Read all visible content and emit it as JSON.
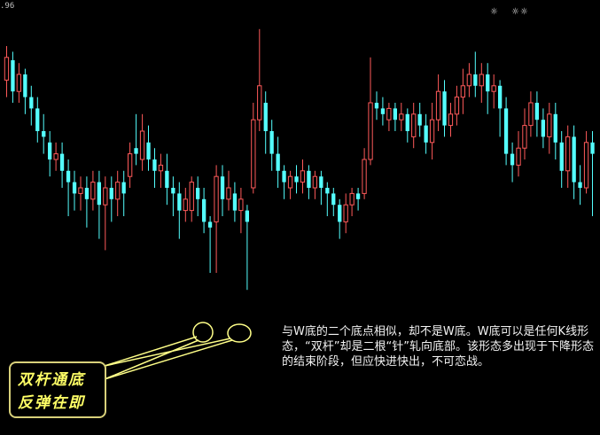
{
  "price_label": ".96",
  "corner_icons": [
    "sun-icon",
    "double-sun-icon"
  ],
  "corner_glyphs": [
    "☼",
    "☼☼"
  ],
  "callout": {
    "line1": "双杆通底",
    "line2": "反弹在即"
  },
  "annotation_text": "与W底的二个底点相似，却不是W底。W底可以是任何K线形态，“双杆”却是二根“针”轧向底部。该形态多出现于下降形态的结束阶段，但应快进快出，不可恋战。",
  "colors": {
    "up": "#ff5a5a",
    "down": "#54ffff",
    "ellipse": "#ffff88",
    "callout_border": "#d8d07a",
    "callout_text": "#ffff66"
  },
  "chart_data": {
    "type": "candlestick",
    "ylim": [
      0,
      100
    ],
    "candles": [
      {
        "o": 78,
        "c": 86,
        "h": 90,
        "l": 72
      },
      {
        "o": 85,
        "c": 74,
        "h": 88,
        "l": 70
      },
      {
        "o": 74,
        "c": 80,
        "h": 84,
        "l": 70
      },
      {
        "o": 80,
        "c": 72,
        "h": 82,
        "l": 66
      },
      {
        "o": 72,
        "c": 68,
        "h": 76,
        "l": 62
      },
      {
        "o": 68,
        "c": 60,
        "h": 72,
        "l": 56
      },
      {
        "o": 60,
        "c": 58,
        "h": 66,
        "l": 52
      },
      {
        "o": 56,
        "c": 50,
        "h": 60,
        "l": 44
      },
      {
        "o": 50,
        "c": 52,
        "h": 56,
        "l": 46
      },
      {
        "o": 52,
        "c": 46,
        "h": 56,
        "l": 40
      },
      {
        "o": 46,
        "c": 42,
        "h": 50,
        "l": 30
      },
      {
        "o": 42,
        "c": 38,
        "h": 46,
        "l": 32
      },
      {
        "o": 38,
        "c": 40,
        "h": 44,
        "l": 32
      },
      {
        "o": 40,
        "c": 36,
        "h": 44,
        "l": 26
      },
      {
        "o": 36,
        "c": 42,
        "h": 46,
        "l": 32
      },
      {
        "o": 42,
        "c": 34,
        "h": 46,
        "l": 22
      },
      {
        "o": 34,
        "c": 40,
        "h": 44,
        "l": 18
      },
      {
        "o": 40,
        "c": 36,
        "h": 44,
        "l": 28
      },
      {
        "o": 36,
        "c": 42,
        "h": 46,
        "l": 30
      },
      {
        "o": 42,
        "c": 38,
        "h": 46,
        "l": 30
      },
      {
        "o": 44,
        "c": 52,
        "h": 56,
        "l": 40
      },
      {
        "o": 54,
        "c": 52,
        "h": 66,
        "l": 48
      },
      {
        "o": 50,
        "c": 60,
        "h": 66,
        "l": 46
      },
      {
        "o": 56,
        "c": 50,
        "h": 62,
        "l": 46
      },
      {
        "o": 50,
        "c": 46,
        "h": 54,
        "l": 40
      },
      {
        "o": 46,
        "c": 48,
        "h": 52,
        "l": 40
      },
      {
        "o": 46,
        "c": 40,
        "h": 52,
        "l": 34
      },
      {
        "o": 40,
        "c": 38,
        "h": 44,
        "l": 30
      },
      {
        "o": 38,
        "c": 32,
        "h": 42,
        "l": 22
      },
      {
        "o": 32,
        "c": 36,
        "h": 40,
        "l": 28
      },
      {
        "o": 32,
        "c": 42,
        "h": 44,
        "l": 28
      },
      {
        "o": 40,
        "c": 36,
        "h": 44,
        "l": 30
      },
      {
        "o": 36,
        "c": 28,
        "h": 40,
        "l": 24
      },
      {
        "o": 28,
        "c": 26,
        "h": 30,
        "l": 10
      },
      {
        "o": 28,
        "c": 44,
        "h": 48,
        "l": 10
      },
      {
        "o": 44,
        "c": 36,
        "h": 48,
        "l": 30
      },
      {
        "o": 36,
        "c": 40,
        "h": 46,
        "l": 32
      },
      {
        "o": 38,
        "c": 32,
        "h": 42,
        "l": 28
      },
      {
        "o": 32,
        "c": 36,
        "h": 40,
        "l": 24
      },
      {
        "o": 32,
        "c": 28,
        "h": 34,
        "l": 4
      },
      {
        "o": 40,
        "c": 64,
        "h": 70,
        "l": 38
      },
      {
        "o": 64,
        "c": 76,
        "h": 96,
        "l": 60
      },
      {
        "o": 70,
        "c": 60,
        "h": 74,
        "l": 52
      },
      {
        "o": 60,
        "c": 52,
        "h": 64,
        "l": 46
      },
      {
        "o": 52,
        "c": 46,
        "h": 58,
        "l": 40
      },
      {
        "o": 46,
        "c": 42,
        "h": 48,
        "l": 36
      },
      {
        "o": 40,
        "c": 44,
        "h": 46,
        "l": 36
      },
      {
        "o": 44,
        "c": 42,
        "h": 48,
        "l": 38
      },
      {
        "o": 42,
        "c": 46,
        "h": 50,
        "l": 38
      },
      {
        "o": 46,
        "c": 40,
        "h": 48,
        "l": 36
      },
      {
        "o": 40,
        "c": 44,
        "h": 46,
        "l": 36
      },
      {
        "o": 44,
        "c": 40,
        "h": 46,
        "l": 34
      },
      {
        "o": 40,
        "c": 38,
        "h": 42,
        "l": 30
      },
      {
        "o": 38,
        "c": 34,
        "h": 40,
        "l": 30
      },
      {
        "o": 34,
        "c": 28,
        "h": 36,
        "l": 22
      },
      {
        "o": 28,
        "c": 34,
        "h": 38,
        "l": 24
      },
      {
        "o": 34,
        "c": 38,
        "h": 40,
        "l": 30
      },
      {
        "o": 38,
        "c": 36,
        "h": 40,
        "l": 32
      },
      {
        "o": 38,
        "c": 50,
        "h": 54,
        "l": 36
      },
      {
        "o": 50,
        "c": 70,
        "h": 86,
        "l": 48
      },
      {
        "o": 70,
        "c": 68,
        "h": 74,
        "l": 64
      },
      {
        "o": 68,
        "c": 66,
        "h": 72,
        "l": 62
      },
      {
        "o": 64,
        "c": 68,
        "h": 70,
        "l": 60
      },
      {
        "o": 68,
        "c": 64,
        "h": 70,
        "l": 60
      },
      {
        "o": 64,
        "c": 66,
        "h": 70,
        "l": 60
      },
      {
        "o": 66,
        "c": 60,
        "h": 68,
        "l": 56
      },
      {
        "o": 58,
        "c": 66,
        "h": 70,
        "l": 54
      },
      {
        "o": 66,
        "c": 62,
        "h": 70,
        "l": 58
      },
      {
        "o": 62,
        "c": 56,
        "h": 66,
        "l": 52
      },
      {
        "o": 56,
        "c": 64,
        "h": 70,
        "l": 50
      },
      {
        "o": 64,
        "c": 74,
        "h": 80,
        "l": 60
      },
      {
        "o": 74,
        "c": 62,
        "h": 78,
        "l": 58
      },
      {
        "o": 62,
        "c": 66,
        "h": 70,
        "l": 58
      },
      {
        "o": 66,
        "c": 72,
        "h": 76,
        "l": 62
      },
      {
        "o": 72,
        "c": 76,
        "h": 82,
        "l": 66
      },
      {
        "o": 76,
        "c": 80,
        "h": 84,
        "l": 72
      },
      {
        "o": 80,
        "c": 76,
        "h": 88,
        "l": 72
      },
      {
        "o": 76,
        "c": 80,
        "h": 84,
        "l": 70
      },
      {
        "o": 80,
        "c": 74,
        "h": 84,
        "l": 66
      },
      {
        "o": 74,
        "c": 76,
        "h": 80,
        "l": 68
      },
      {
        "o": 76,
        "c": 68,
        "h": 78,
        "l": 58
      },
      {
        "o": 68,
        "c": 52,
        "h": 72,
        "l": 48
      },
      {
        "o": 52,
        "c": 48,
        "h": 56,
        "l": 42
      },
      {
        "o": 48,
        "c": 54,
        "h": 60,
        "l": 44
      },
      {
        "o": 54,
        "c": 62,
        "h": 68,
        "l": 50
      },
      {
        "o": 62,
        "c": 70,
        "h": 74,
        "l": 58
      },
      {
        "o": 70,
        "c": 64,
        "h": 74,
        "l": 58
      },
      {
        "o": 64,
        "c": 58,
        "h": 68,
        "l": 54
      },
      {
        "o": 58,
        "c": 66,
        "h": 70,
        "l": 52
      },
      {
        "o": 66,
        "c": 56,
        "h": 70,
        "l": 50
      },
      {
        "o": 56,
        "c": 46,
        "h": 60,
        "l": 40
      },
      {
        "o": 46,
        "c": 58,
        "h": 62,
        "l": 40
      },
      {
        "o": 58,
        "c": 42,
        "h": 62,
        "l": 36
      },
      {
        "o": 42,
        "c": 40,
        "h": 48,
        "l": 34
      },
      {
        "o": 40,
        "c": 56,
        "h": 60,
        "l": 38
      },
      {
        "o": 56,
        "c": 52,
        "h": 60,
        "l": 30
      }
    ]
  }
}
